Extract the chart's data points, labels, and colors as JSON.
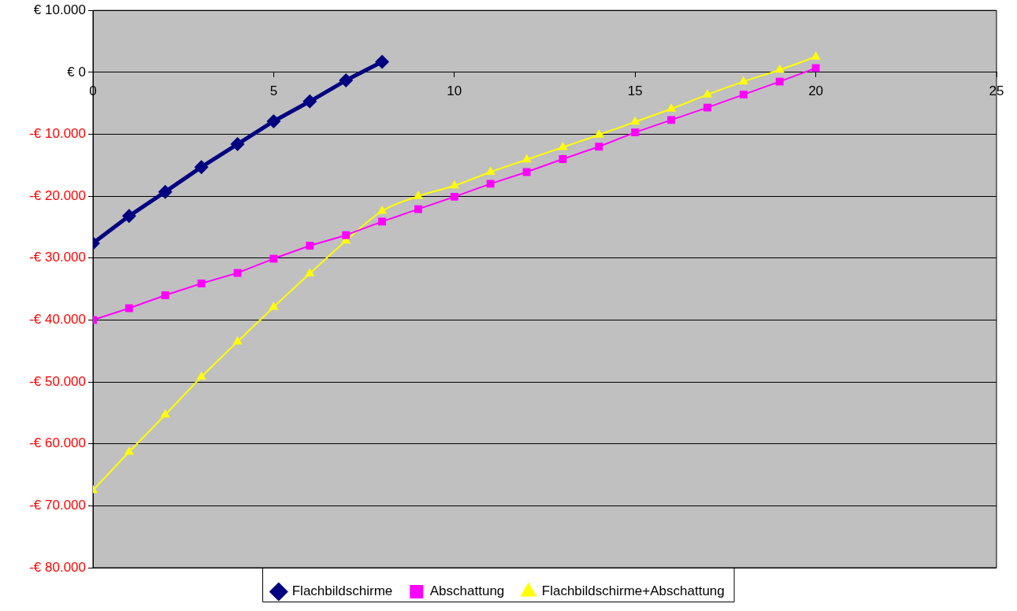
{
  "chart_data": {
    "type": "line",
    "x": [
      0,
      1,
      2,
      3,
      4,
      5,
      6,
      7,
      8,
      9,
      10,
      11,
      12,
      13,
      14,
      15,
      16,
      17,
      18,
      19,
      20
    ],
    "series": [
      {
        "name": "Flachbildschirme",
        "color": "#000080",
        "marker": "diamond",
        "x": [
          0,
          1,
          2,
          3,
          4,
          5,
          6,
          7,
          8
        ],
        "values": [
          -27600,
          -23200,
          -19300,
          -15300,
          -11600,
          -7900,
          -4700,
          -1300,
          1700
        ]
      },
      {
        "name": "Abschattung",
        "color": "#ff00ff",
        "marker": "square",
        "values": [
          -40000,
          -38100,
          -36000,
          -34100,
          -32400,
          -30100,
          -28000,
          -26300,
          -24100,
          -22100,
          -20100,
          -18000,
          -16100,
          -14000,
          -12000,
          -9700,
          -7700,
          -5700,
          -3600,
          -1500,
          700
        ]
      },
      {
        "name": "Flachbildschirme+Abschattung",
        "color": "#ffff00",
        "marker": "triangle",
        "values": [
          -67500,
          -61300,
          -55300,
          -49200,
          -43500,
          -37900,
          -32500,
          -27200,
          -22400,
          -20000,
          -18300,
          -16100,
          -14100,
          -12100,
          -10100,
          -8000,
          -5900,
          -3600,
          -1500,
          400,
          2500
        ]
      }
    ],
    "xlim": [
      0,
      25
    ],
    "xticks": [
      0,
      5,
      10,
      15,
      20,
      25
    ],
    "ylim": [
      -80000,
      10000
    ],
    "yticks": [
      {
        "value": 10000,
        "label": "€ 10.000"
      },
      {
        "value": 0,
        "label": "€ 0"
      },
      {
        "value": -10000,
        "label": "-€ 10.000"
      },
      {
        "value": -20000,
        "label": "-€ 20.000"
      },
      {
        "value": -30000,
        "label": "-€ 30.000"
      },
      {
        "value": -40000,
        "label": "-€ 40.000"
      },
      {
        "value": -50000,
        "label": "-€ 50.000"
      },
      {
        "value": -60000,
        "label": "-€ 60.000"
      },
      {
        "value": -70000,
        "label": "-€ 70.000"
      },
      {
        "value": -80000,
        "label": "-€ 80.000"
      }
    ],
    "grid": "y",
    "legend": "bottom",
    "line_style": "solid"
  }
}
